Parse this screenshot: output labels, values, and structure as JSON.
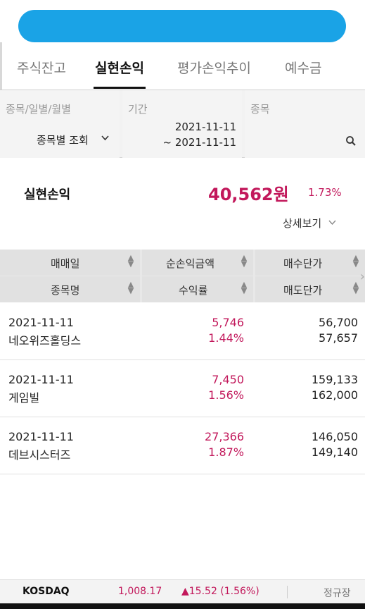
{
  "tabs": [
    "주식잔고",
    "실현손익",
    "평가손익추이",
    "예수금"
  ],
  "filter": {
    "type_label": "종목/일별/월별",
    "type_value": "종목별 조회",
    "period_label": "기간",
    "date_from": "2021-11-11",
    "date_to": "~ 2021-11-11",
    "stock_label": "종목"
  },
  "summary": {
    "label": "실현손익",
    "amount": "40,562원",
    "rate": "1.73%",
    "detail_label": "상세보기"
  },
  "table": {
    "headers": [
      [
        "매매일",
        "순손익금액",
        "매수단가"
      ],
      [
        "종목명",
        "수익률",
        "매도단가"
      ]
    ],
    "rows": [
      {
        "date": "2021-11-11",
        "name": "네오위즈홀딩스",
        "profit": "5,746",
        "rate": "1.44%",
        "buy": "56,700",
        "sell": "57,657"
      },
      {
        "date": "2021-11-11",
        "name": "게임빌",
        "profit": "7,450",
        "rate": "1.56%",
        "buy": "159,133",
        "sell": "162,000"
      },
      {
        "date": "2021-11-11",
        "name": "데브시스터즈",
        "profit": "27,366",
        "rate": "1.87%",
        "buy": "146,050",
        "sell": "149,140"
      }
    ]
  },
  "ticker": {
    "name": "KOSDAQ",
    "value": "1,008.17",
    "change": "▲15.52 (1.56%)",
    "status": "정규장"
  },
  "colors": {
    "accent": "#c2185b",
    "redaction": "#1aa3e6"
  }
}
